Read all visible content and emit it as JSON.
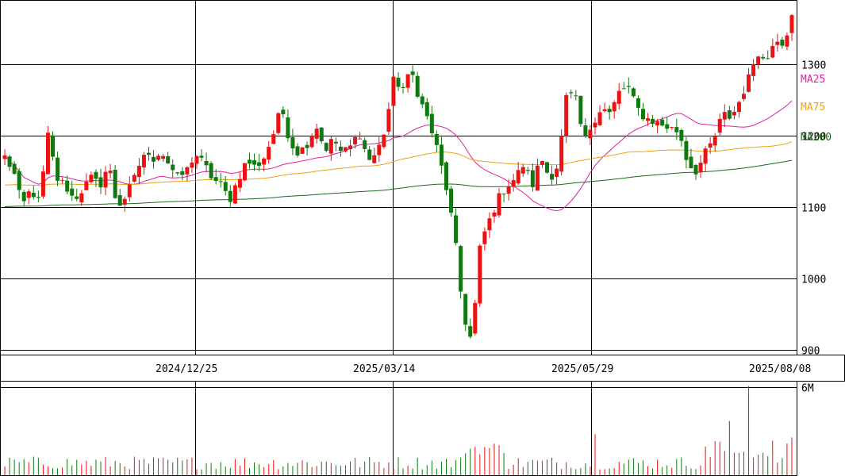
{
  "chart_data": {
    "type": "candlestick",
    "y_axis": {
      "ticks": [
        "900",
        "1000",
        "1100",
        "1200",
        "1300"
      ],
      "range": [
        893,
        1390
      ]
    },
    "x_axis": {
      "labels": [
        "2024/12/25",
        "2025/03/14",
        "2025/05/29",
        "2025/08/08"
      ]
    },
    "legend": [
      {
        "name": "MA25",
        "color": "#e0219e"
      },
      {
        "name": "MA75",
        "color": "#f0a010"
      },
      {
        "name": "MA200",
        "color": "#1a6b1a"
      }
    ],
    "volume_axis": {
      "ticks": [
        "6M"
      ],
      "max": 6.4
    },
    "colors": {
      "up": "#ee1111",
      "down": "#117711"
    },
    "ohlc_anchor_closes": [
      1170,
      1150,
      1100,
      1125,
      1105,
      1200,
      1140,
      1130,
      1110,
      1125,
      1140,
      1130,
      1160,
      1100,
      1115,
      1140,
      1175,
      1165,
      1180,
      1160,
      1140,
      1150,
      1175,
      1160,
      1140,
      1130,
      1110,
      1140,
      1165,
      1155,
      1170,
      1200,
      1240,
      1190,
      1175,
      1190,
      1215,
      1180,
      1195,
      1175,
      1185,
      1205,
      1165,
      1175,
      1210,
      1280,
      1265,
      1290,
      1250,
      1220,
      1180,
      1130,
      1060,
      950,
      910,
      1050,
      1080,
      1110,
      1130,
      1140,
      1160,
      1130,
      1170,
      1140,
      1160,
      1260,
      1250,
      1190,
      1220,
      1240,
      1230,
      1260,
      1270,
      1240,
      1225,
      1220,
      1215,
      1210,
      1205,
      1160,
      1150,
      1175,
      1195,
      1230,
      1225,
      1250,
      1280,
      1320,
      1300,
      1340,
      1330,
      1365
    ]
  }
}
